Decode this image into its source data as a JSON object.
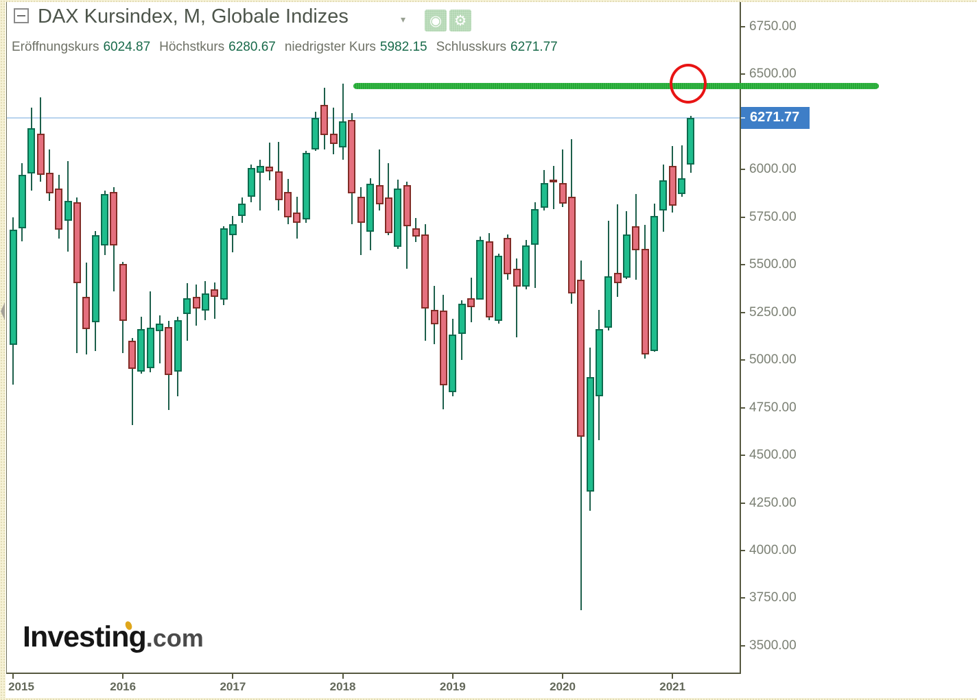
{
  "header": {
    "title": "DAX Kursindex, M, Globale Indizes",
    "ohlc": [
      {
        "label": "Eröffnungskurs",
        "value": "6024.87"
      },
      {
        "label": "Höchstkurs",
        "value": "6280.67"
      },
      {
        "label": "niedrigster Kurs",
        "value": "5982.15"
      },
      {
        "label": "Schlusskurs",
        "value": "6271.77"
      }
    ]
  },
  "price_badge": "6271.77",
  "watermark": {
    "brand": "Investing",
    "suffix": ".com"
  },
  "colors": {
    "up_fill": "#1fbd8d",
    "up_border": "#0d6b4e",
    "down_fill": "#e5707e",
    "down_border": "#822c26",
    "wick": "#1d5f4b",
    "support_line": "#1ea32e",
    "circle": "#e81414",
    "current_price_line": "#b7d3ee",
    "badge_bg": "#3e7ec7"
  },
  "chart_data": {
    "type": "candlestick",
    "title": "DAX Kursindex, M, Globale Indizes",
    "interval": "1M",
    "start_month": "2015-01",
    "legend_position": "none",
    "grid": false,
    "ylim": [
      3440,
      6890
    ],
    "y_tick_labels": [
      "6750.00",
      "6500.00",
      "6000.00",
      "5750.00",
      "5500.00",
      "5250.00",
      "5000.00",
      "4750.00",
      "4500.00",
      "4250.00",
      "4000.00",
      "3750.00",
      "3500.00"
    ],
    "y_tick_values": [
      6750,
      6500,
      6000,
      5750,
      5500,
      5250,
      5000,
      4750,
      4500,
      4250,
      4000,
      3750,
      3500
    ],
    "x_tick_labels": [
      "2015",
      "2016",
      "2017",
      "2018",
      "2019",
      "2020",
      "2021"
    ],
    "last_price": 6271.77,
    "annotations": {
      "support_line_price": 6437,
      "circle_price": 6450,
      "current_price_line": 6271.77
    },
    "candles": [
      [
        5078,
        5748,
        4870,
        5683
      ],
      [
        5690,
        6032,
        5622,
        5974
      ],
      [
        5978,
        6324,
        5891,
        6216
      ],
      [
        6187,
        6378,
        5935,
        5971
      ],
      [
        5982,
        6104,
        5834,
        5874
      ],
      [
        5899,
        5971,
        5636,
        5683
      ],
      [
        5730,
        6043,
        5568,
        5834
      ],
      [
        5827,
        5852,
        5035,
        5402
      ],
      [
        5333,
        5510,
        5028,
        5161
      ],
      [
        5197,
        5676,
        5046,
        5654
      ],
      [
        5600,
        5891,
        5550,
        5870
      ],
      [
        5884,
        5906,
        5359,
        5600
      ],
      [
        5503,
        5514,
        5035,
        5204
      ],
      [
        5100,
        5114,
        4657,
        4952
      ],
      [
        4938,
        5226,
        4927,
        5161
      ],
      [
        4956,
        5359,
        4934,
        5168
      ],
      [
        5150,
        5233,
        4981,
        5190
      ],
      [
        5172,
        5204,
        4736,
        4920
      ],
      [
        4938,
        5226,
        4808,
        5208
      ],
      [
        5240,
        5402,
        5100,
        5323
      ],
      [
        5330,
        5395,
        5179,
        5269
      ],
      [
        5258,
        5413,
        5208,
        5348
      ],
      [
        5370,
        5406,
        5215,
        5330
      ],
      [
        5316,
        5701,
        5287,
        5690
      ],
      [
        5654,
        5756,
        5564,
        5712
      ],
      [
        5755,
        5852,
        5719,
        5820
      ],
      [
        5856,
        6025,
        5827,
        6007
      ],
      [
        5982,
        6050,
        5784,
        6018
      ],
      [
        6014,
        6140,
        5942,
        5989
      ],
      [
        5989,
        6144,
        5784,
        5838
      ],
      [
        5881,
        5950,
        5712,
        5748
      ],
      [
        5773,
        5856,
        5636,
        5719
      ],
      [
        5737,
        6097,
        5719,
        6086
      ],
      [
        6104,
        6302,
        6097,
        6270
      ],
      [
        6338,
        6428,
        6104,
        6180
      ],
      [
        6187,
        6324,
        6079,
        6133
      ],
      [
        6115,
        6450,
        6050,
        6252
      ],
      [
        6259,
        6295,
        5712,
        5874
      ],
      [
        5856,
        5906,
        5550,
        5719
      ],
      [
        5672,
        5953,
        5575,
        5924
      ],
      [
        5917,
        6104,
        5784,
        5816
      ],
      [
        5852,
        6032,
        5654,
        5665
      ],
      [
        5593,
        5946,
        5582,
        5899
      ],
      [
        5917,
        5935,
        5478,
        5701
      ],
      [
        5690,
        5744,
        5618,
        5647
      ],
      [
        5658,
        5712,
        5100,
        5269
      ],
      [
        5262,
        5388,
        5082,
        5186
      ],
      [
        5260,
        5341,
        4740,
        4866
      ],
      [
        4830,
        5215,
        4808,
        5132
      ],
      [
        5136,
        5312,
        5000,
        5294
      ],
      [
        5323,
        5431,
        5197,
        5276
      ],
      [
        5316,
        5647,
        5316,
        5629
      ],
      [
        5622,
        5665,
        5208,
        5222
      ],
      [
        5204,
        5557,
        5190,
        5546
      ],
      [
        5640,
        5658,
        5420,
        5449
      ],
      [
        5478,
        5532,
        5118,
        5384
      ],
      [
        5384,
        5629,
        5370,
        5600
      ],
      [
        5604,
        5827,
        5377,
        5791
      ],
      [
        5798,
        5996,
        5784,
        5928
      ],
      [
        5949,
        6018,
        5791,
        5935
      ],
      [
        5928,
        6104,
        5802,
        5820
      ],
      [
        5856,
        6158,
        5294,
        5348
      ],
      [
        5420,
        5521,
        3685,
        4596
      ],
      [
        4308,
        5064,
        4207,
        4909
      ],
      [
        4808,
        5262,
        4578,
        5161
      ],
      [
        5168,
        5730,
        5154,
        5438
      ],
      [
        5456,
        5816,
        5330,
        5402
      ],
      [
        5431,
        5780,
        5424,
        5658
      ],
      [
        5701,
        5870,
        5420,
        5575
      ],
      [
        5582,
        5708,
        5006,
        5028
      ],
      [
        5046,
        5820,
        5042,
        5755
      ],
      [
        5784,
        6025,
        5672,
        5942
      ],
      [
        6018,
        6122,
        5773,
        5809
      ],
      [
        5870,
        6126,
        5856,
        5953
      ],
      [
        6024.87,
        6280.67,
        5982.15,
        6271.77
      ]
    ]
  }
}
